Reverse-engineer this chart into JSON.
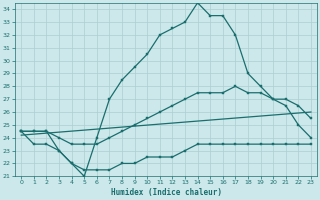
{
  "xlabel": "Humidex (Indice chaleur)",
  "bg_color": "#cce8ea",
  "grid_color": "#aacfd2",
  "line_color": "#1a6e6e",
  "xlim": [
    -0.5,
    23.5
  ],
  "ylim": [
    21,
    34.5
  ],
  "xticks": [
    0,
    1,
    2,
    3,
    4,
    5,
    6,
    7,
    8,
    9,
    10,
    11,
    12,
    13,
    14,
    15,
    16,
    17,
    18,
    19,
    20,
    21,
    22,
    23
  ],
  "yticks": [
    21,
    22,
    23,
    24,
    25,
    26,
    27,
    28,
    29,
    30,
    31,
    32,
    33,
    34
  ],
  "line1_x": [
    0,
    1,
    2,
    3,
    4,
    5,
    6,
    7,
    8,
    9,
    10,
    11,
    12,
    13,
    14,
    15,
    16,
    17,
    18,
    19,
    20,
    21,
    22,
    23
  ],
  "line1_y": [
    24.5,
    24.5,
    24.5,
    23.0,
    22.0,
    21.0,
    24.0,
    27.0,
    28.5,
    29.5,
    30.5,
    32.0,
    32.5,
    33.0,
    34.5,
    33.5,
    33.5,
    32.0,
    29.0,
    28.0,
    27.0,
    26.5,
    25.0,
    24.0
  ],
  "line2_x": [
    0,
    1,
    2,
    3,
    4,
    5,
    6,
    7,
    8,
    9,
    10,
    11,
    12,
    13,
    14,
    15,
    16,
    17,
    18,
    19,
    20,
    21,
    22,
    23
  ],
  "line2_y": [
    24.5,
    24.5,
    24.5,
    24.0,
    23.5,
    23.5,
    23.5,
    24.0,
    24.5,
    25.0,
    25.5,
    26.0,
    26.5,
    27.0,
    27.5,
    27.5,
    27.5,
    28.0,
    27.5,
    27.5,
    27.0,
    27.0,
    26.5,
    25.5
  ],
  "line3_x": [
    0,
    23
  ],
  "line3_y": [
    24.2,
    26.0
  ],
  "line4_x": [
    0,
    1,
    2,
    3,
    4,
    5,
    6,
    7,
    8,
    9,
    10,
    11,
    12,
    13,
    14,
    15,
    16,
    17,
    18,
    19,
    20,
    21,
    22,
    23
  ],
  "line4_y": [
    24.5,
    23.5,
    23.5,
    23.0,
    22.0,
    21.5,
    21.5,
    21.5,
    22.0,
    22.0,
    22.5,
    22.5,
    22.5,
    23.0,
    23.5,
    23.5,
    23.5,
    23.5,
    23.5,
    23.5,
    23.5,
    23.5,
    23.5,
    23.5
  ]
}
